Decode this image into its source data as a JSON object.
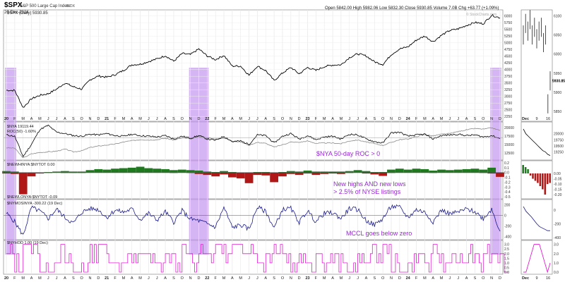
{
  "header": {
    "symbol": "$SPX",
    "name": "S&P 500 Large Cap Index",
    "exchange": "INDX",
    "date": "20-Dec-2024",
    "ohlc": "Open 5842.00  High 5982.06  Low 5832.30  Close 5930.85  Volume 7.0B  Chg +63.77 (+1.09%)",
    "watermark": "© StockCharts.com"
  },
  "annotations": {
    "roc": "$NYA 50-day ROC > 0",
    "hl_line1": "New highs AND new lows",
    "hl_line2": "> 2.5% of NYSE listings",
    "mccl": "MCCL goes below zero"
  },
  "colors": {
    "highlight": "#c89cf0",
    "price": "#000000",
    "nya": "#8a8a8a",
    "newhigh": "#1f7a1f",
    "newlow": "#b01818",
    "mccl": "#1a1a8c",
    "nyhgh": "#e020d0",
    "annotation": "#9a28d8"
  },
  "chart_data": [
    {
      "type": "line",
      "panel": "price",
      "legend": "$SPX (Daily) 5930.85",
      "x_labels": [
        "20",
        "F",
        "M",
        "A",
        "M",
        "J",
        "J",
        "A",
        "S",
        "O",
        "N",
        "D",
        "21",
        "F",
        "M",
        "A",
        "M",
        "J",
        "J",
        "A",
        "S",
        "O",
        "N",
        "D",
        "22",
        "F",
        "M",
        "A",
        "M",
        "J",
        "J",
        "A",
        "S",
        "O",
        "N",
        "D",
        "23",
        "F",
        "M",
        "A",
        "M",
        "J",
        "J",
        "A",
        "S",
        "O",
        "N",
        "D",
        "24",
        "F",
        "M",
        "A",
        "M",
        "J",
        "J",
        "A",
        "S",
        "O",
        "N",
        "D"
      ],
      "y_ticks": [
        2250,
        2500,
        2750,
        3000,
        3250,
        3500,
        3750,
        4000,
        4250,
        4500,
        4750,
        5000,
        5250,
        5500,
        5750,
        6000
      ],
      "ylim": [
        2150,
        6150
      ],
      "series": [
        {
          "name": "$SPX",
          "values": [
            3230,
            3225,
            2580,
            2910,
            3040,
            3100,
            3270,
            3500,
            3360,
            3270,
            3620,
            3760,
            3715,
            3810,
            3970,
            4180,
            4200,
            4300,
            4400,
            4520,
            4310,
            4600,
            4560,
            4770,
            4510,
            4370,
            4530,
            4130,
            4130,
            3790,
            4130,
            3960,
            3590,
            3870,
            4080,
            3840,
            4080,
            3970,
            4110,
            4170,
            4180,
            4450,
            4590,
            4510,
            4290,
            4190,
            4560,
            4770,
            4850,
            5100,
            5250,
            5040,
            5280,
            5460,
            5520,
            5650,
            5760,
            5710,
            6030,
            5930
          ]
        }
      ],
      "highlights": [
        [
          0,
          1
        ],
        [
          22,
          24
        ],
        [
          58,
          59
        ]
      ]
    },
    {
      "type": "line",
      "panel": "nya_roc",
      "legends": [
        "$NYA 19119.44",
        "ROC(50) -1.60%"
      ],
      "y_ticks_left": [
        12500,
        15000,
        17500,
        20000
      ],
      "y_ticks_right": [
        20000,
        17500,
        15000,
        12500
      ],
      "ylim": [
        11000,
        21000
      ],
      "series": [
        {
          "name": "$NYA",
          "values": [
            14000,
            13900,
            11000,
            12200,
            12600,
            12800,
            13000,
            13600,
            12800,
            13100,
            14100,
            14500,
            14800,
            15100,
            15700,
            16100,
            16400,
            16300,
            16400,
            16800,
            16300,
            16900,
            16700,
            17300,
            16900,
            16600,
            16900,
            16000,
            15700,
            14800,
            15600,
            15300,
            14200,
            14900,
            15700,
            15600,
            16000,
            15300,
            15400,
            15400,
            15200,
            16000,
            16300,
            15700,
            15200,
            14700,
            15600,
            16400,
            16600,
            17300,
            17900,
            17500,
            18000,
            18200,
            18800,
            19300,
            19700,
            19500,
            19900,
            19100
          ]
        },
        {
          "name": "ROC(50)",
          "values": [
            4,
            2,
            -28,
            -10,
            12,
            18,
            8,
            6,
            3,
            2,
            5,
            4,
            6,
            3,
            2,
            5,
            3,
            2,
            1,
            3,
            -2,
            2,
            -1,
            3,
            -2,
            -4,
            2,
            -6,
            -5,
            -10,
            4,
            3,
            -8,
            2,
            6,
            -2,
            3,
            -3,
            1,
            2,
            -2,
            5,
            4,
            -2,
            -6,
            -8,
            7,
            8,
            2,
            4,
            5,
            -2,
            3,
            4,
            5,
            3,
            4,
            1,
            3,
            -1.6
          ]
        }
      ],
      "highlights": [
        [
          0,
          1
        ],
        [
          22,
          24
        ],
        [
          58,
          59
        ]
      ]
    },
    {
      "type": "bar",
      "panel": "newhi_newlo",
      "legends": [
        "$NEWHINYA:$NYTOT 0.00",
        "$NEWLONYA:$NYTOT -0.09"
      ],
      "y_ticks": [
        0.2,
        0.1,
        0.0,
        -0.1,
        -0.2,
        -0.3,
        -0.4,
        -0.5
      ],
      "ylim": [
        -0.5,
        0.2
      ],
      "series": [
        {
          "name": "$NEWHINYA:$NYTOT",
          "values": [
            0.03,
            0.02,
            0,
            0,
            0,
            0.01,
            0.02,
            0.03,
            0.02,
            0.02,
            0.05,
            0.07,
            0.06,
            0.08,
            0.09,
            0.1,
            0.12,
            0.09,
            0.08,
            0.07,
            0.05,
            0.06,
            0.05,
            0.04,
            0.02,
            0.01,
            0.03,
            0.01,
            0,
            0,
            0.01,
            0.01,
            0,
            0.01,
            0.03,
            0.02,
            0.04,
            0.02,
            0.02,
            0.02,
            0.02,
            0.03,
            0.05,
            0.03,
            0.01,
            0.01,
            0.06,
            0.08,
            0.06,
            0.08,
            0.07,
            0.04,
            0.06,
            0.05,
            0.06,
            0.07,
            0.08,
            0.06,
            0.1,
            0
          ]
        },
        {
          "name": "$NEWLONYA:$NYTOT",
          "values": [
            -0.02,
            -0.03,
            -0.45,
            -0.08,
            -0.02,
            -0.01,
            0,
            -0.01,
            -0.01,
            -0.01,
            0,
            0,
            0,
            0,
            0,
            0,
            0,
            0,
            0,
            0,
            -0.01,
            0,
            -0.01,
            -0.03,
            -0.05,
            -0.08,
            -0.04,
            -0.1,
            -0.12,
            -0.22,
            -0.05,
            -0.06,
            -0.2,
            -0.08,
            -0.03,
            -0.05,
            -0.02,
            -0.05,
            -0.03,
            -0.02,
            -0.03,
            -0.01,
            0,
            -0.02,
            -0.04,
            -0.07,
            -0.01,
            0,
            0,
            0,
            0,
            -0.01,
            0,
            0,
            0,
            0,
            0,
            -0.01,
            -0.02,
            -0.09
          ]
        }
      ],
      "highlights": [
        [
          0,
          1
        ],
        [
          22,
          24
        ],
        [
          58,
          59
        ]
      ]
    },
    {
      "type": "line",
      "panel": "mccl",
      "legend": "$NYMOSINYA -300.22 (19 Dec)",
      "y_ticks": [
        200,
        0,
        -200,
        -400
      ],
      "ylim": [
        -420,
        260
      ],
      "series": [
        {
          "name": "$NYMOSINYA",
          "values": [
            40,
            -120,
            -380,
            150,
            80,
            -60,
            120,
            -40,
            -150,
            60,
            130,
            110,
            -40,
            100,
            60,
            120,
            -80,
            40,
            -90,
            70,
            -130,
            90,
            -70,
            -100,
            -160,
            -220,
            150,
            -230,
            -180,
            -260,
            160,
            70,
            -240,
            110,
            130,
            -130,
            90,
            -120,
            40,
            50,
            -60,
            130,
            110,
            -100,
            -180,
            -60,
            170,
            150,
            -40,
            110,
            60,
            -120,
            100,
            30,
            60,
            120,
            70,
            -60,
            120,
            -300
          ]
        }
      ],
      "highlights": [
        [
          0,
          1
        ],
        [
          22,
          24
        ],
        [
          58,
          59
        ]
      ]
    },
    {
      "type": "area",
      "panel": "nyhgh",
      "legend": "$NYHOD 1.00 (19 Dec)",
      "y_ticks": [
        3.0,
        2.5,
        2.0,
        1.5,
        1.0,
        0.5,
        0.0
      ],
      "ylim": [
        0,
        3.2
      ],
      "series": [
        {
          "name": "$NYHOD",
          "values": [
            2,
            1,
            3,
            3,
            0,
            1,
            2,
            1,
            0,
            1,
            2,
            3,
            2,
            1,
            2,
            1,
            2,
            1,
            1,
            2,
            1,
            2,
            1,
            3,
            2,
            3,
            2,
            3,
            3,
            3,
            1,
            2,
            3,
            2,
            1,
            2,
            1,
            2,
            1,
            1,
            1,
            0,
            1,
            2,
            2,
            3,
            1,
            0,
            1,
            2,
            1,
            2,
            1,
            2,
            1,
            2,
            1,
            2,
            2,
            1
          ]
        }
      ],
      "highlights": [
        [
          0,
          1
        ],
        [
          22,
          24
        ],
        [
          58,
          59
        ]
      ]
    },
    {
      "type": "line",
      "panel": "inset",
      "x_labels": [
        "Dec",
        "9",
        "16"
      ],
      "y_ticks": [
        6100,
        6050,
        6000,
        5950,
        5900,
        5850
      ],
      "series": [
        {
          "name": "$SPX inset",
          "values": [
            6050,
            6080,
            6060,
            6090,
            6050,
            6070,
            6040,
            6060,
            6070,
            6030,
            6050,
            5870,
            5930
          ]
        },
        {
          "name": "$NYA inset",
          "values": [
            20200,
            20000,
            19900,
            19800,
            19700,
            19600,
            19500,
            19400,
            19300,
            19250,
            19150,
            19100
          ]
        },
        {
          "name": "New highs/lows inset",
          "values": [
            0.08,
            0.06,
            0.04,
            -0.02,
            -0.05,
            -0.07,
            -0.09,
            -0.12,
            -0.15,
            -0.2,
            -0.1,
            -0.09
          ]
        },
        {
          "name": "MCCL inset",
          "values": [
            50,
            -20,
            -60,
            -100,
            -150,
            -200,
            -240,
            -260,
            -280,
            -300,
            -300
          ]
        },
        {
          "name": "NYHOD inset",
          "values": [
            0,
            0,
            1,
            2,
            3,
            3,
            3,
            2,
            1,
            0,
            1
          ]
        }
      ],
      "y_ticks_roc": [
        20000,
        19750,
        19500,
        19250
      ],
      "y_ticks_hl": [
        0.0,
        -0.05,
        -0.1,
        -0.15,
        -0.2
      ],
      "y_ticks_mccl": [
        0,
        -200,
        -400
      ],
      "y_ticks_hod": [
        3.0,
        2.0,
        1.0,
        0.0
      ],
      "tag_values": {
        "spx": "5930.85",
        "roc": "19119.44",
        "hl": "-0.09",
        "mccl": "-300.22",
        "hod": "1.00"
      }
    }
  ]
}
